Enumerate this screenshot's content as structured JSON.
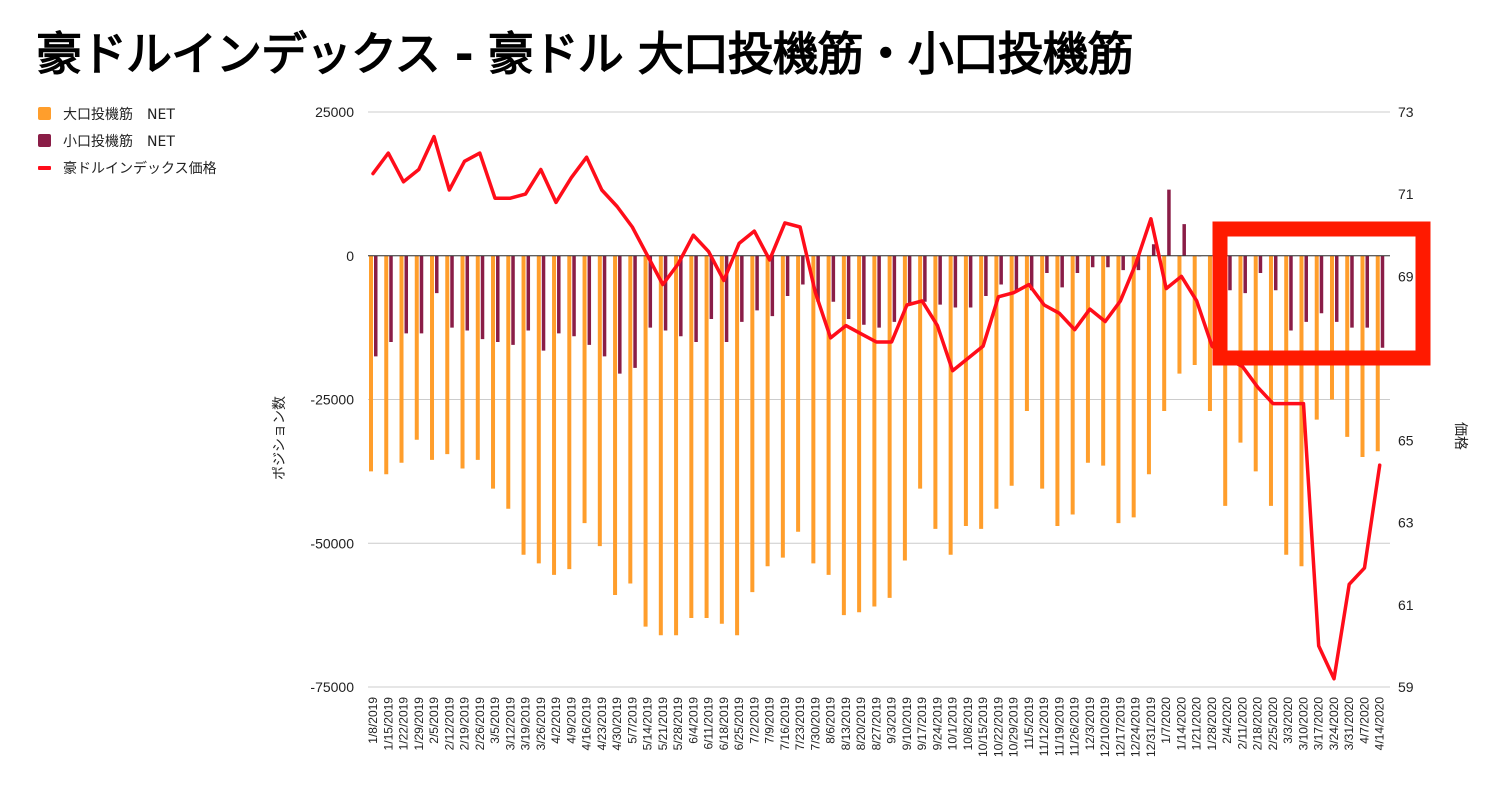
{
  "title": "豪ドルインデックス - 豪ドル 大口投機筋・小口投機筋",
  "colors": {
    "large": "#FF9E2C",
    "small": "#8A1D47",
    "price": "#FF0D1A",
    "highlight": "#FF1A00",
    "grid": "#CCCCCC"
  },
  "chart_data": {
    "type": "bar",
    "title": "豪ドルインデックス - 豪ドル 大口投機筋・小口投機筋",
    "ylabel": "ポジション数",
    "y2label": "価格",
    "ylim": [
      -75000,
      25000
    ],
    "y2lim": [
      59,
      73
    ],
    "yticks": [
      "25000",
      "0",
      "-25000",
      "-50000",
      "-75000"
    ],
    "y2ticks": [
      "73",
      "71",
      "69",
      "65",
      "63",
      "61",
      "59"
    ],
    "legend": [
      "大口投機筋　NET",
      "小口投機筋　NET",
      "豪ドルインデックス価格"
    ],
    "categories": [
      "1/8/2019",
      "1/15/2019",
      "1/22/2019",
      "1/29/2019",
      "2/5/2019",
      "2/12/2019",
      "2/19/2019",
      "2/26/2019",
      "3/5/2019",
      "3/12/2019",
      "3/19/2019",
      "3/26/2019",
      "4/2/2019",
      "4/9/2019",
      "4/16/2019",
      "4/23/2019",
      "4/30/2019",
      "5/7/2019",
      "5/14/2019",
      "5/21/2019",
      "5/28/2019",
      "6/4/2019",
      "6/11/2019",
      "6/18/2019",
      "6/25/2019",
      "7/2/2019",
      "7/9/2019",
      "7/16/2019",
      "7/23/2019",
      "7/30/2019",
      "8/6/2019",
      "8/13/2019",
      "8/20/2019",
      "8/27/2019",
      "9/3/2019",
      "9/10/2019",
      "9/17/2019",
      "9/24/2019",
      "10/1/2019",
      "10/8/2019",
      "10/15/2019",
      "10/22/2019",
      "10/29/2019",
      "11/5/2019",
      "11/12/2019",
      "11/19/2019",
      "11/26/2019",
      "12/3/2019",
      "12/10/2019",
      "12/17/2019",
      "12/24/2019",
      "12/31/2019",
      "1/7/2020",
      "1/14/2020",
      "1/21/2020",
      "1/28/2020",
      "2/4/2020",
      "2/11/2020",
      "2/18/2020",
      "2/25/2020",
      "3/3/2020",
      "3/10/2020",
      "3/17/2020",
      "3/24/2020",
      "3/31/2020",
      "4/7/2020",
      "4/14/2020"
    ],
    "series": [
      {
        "name": "大口投機筋　NET",
        "axis": "left",
        "kind": "bar",
        "values": [
          -37500,
          -38000,
          -36000,
          -32000,
          -35500,
          -34500,
          -37000,
          -35500,
          -40500,
          -44000,
          -52000,
          -53500,
          -55500,
          -54500,
          -46500,
          -50500,
          -59000,
          -57000,
          -64500,
          -66000,
          -66000,
          -63000,
          -63000,
          -64000,
          -66000,
          -58500,
          -54000,
          -52500,
          -48000,
          -53500,
          -55500,
          -62500,
          -62000,
          -61000,
          -59500,
          -53000,
          -40500,
          -47500,
          -52000,
          -47000,
          -47500,
          -44000,
          -40000,
          -27000,
          -40500,
          -47000,
          -45000,
          -36000,
          -36500,
          -46500,
          -45500,
          -38000,
          -27000,
          -20500,
          -19000,
          -27000,
          -43500,
          -32500,
          -37500,
          -43500,
          -52000,
          -54000,
          -28500,
          -25000,
          -31500,
          -35000,
          -34000
        ]
      },
      {
        "name": "小口投機筋　NET",
        "axis": "left",
        "kind": "bar",
        "values": [
          -17500,
          -15000,
          -13500,
          -13500,
          -6500,
          -12500,
          -13000,
          -14500,
          -15000,
          -15500,
          -13000,
          -16500,
          -13500,
          -14000,
          -15500,
          -17500,
          -20500,
          -19500,
          -12500,
          -13000,
          -14000,
          -15000,
          -11000,
          -15000,
          -11500,
          -9500,
          -10500,
          -7000,
          -5000,
          -8000,
          -8000,
          -11000,
          -12000,
          -12500,
          -11500,
          -8500,
          -8000,
          -8500,
          -9000,
          -9000,
          -7000,
          -5000,
          -6000,
          -6000,
          -3000,
          -5500,
          -3000,
          -2000,
          -2000,
          -2500,
          -2500,
          2000,
          11500,
          5500,
          0,
          0,
          -6000,
          -6500,
          -3000,
          -6000,
          -13000,
          -11500,
          -10000,
          -11500,
          -12500,
          -12500,
          -16000
        ]
      },
      {
        "name": "豪ドルインデックス価格",
        "axis": "right",
        "kind": "line",
        "values": [
          71.5,
          72.0,
          71.3,
          71.6,
          72.4,
          71.1,
          71.8,
          72.0,
          70.9,
          70.9,
          71.0,
          71.6,
          70.8,
          71.4,
          71.9,
          71.1,
          70.7,
          70.2,
          69.5,
          68.8,
          69.3,
          70.0,
          69.6,
          68.9,
          69.8,
          70.1,
          69.4,
          70.3,
          70.2,
          68.6,
          67.5,
          67.8,
          67.6,
          67.4,
          67.4,
          68.3,
          68.4,
          67.8,
          66.7,
          67.0,
          67.3,
          68.5,
          68.6,
          68.8,
          68.3,
          68.1,
          67.7,
          68.2,
          67.9,
          68.4,
          69.3,
          70.4,
          68.7,
          69.0,
          68.4,
          67.3,
          67.0,
          66.8,
          66.3,
          65.9,
          65.9,
          65.9,
          60.0,
          59.2,
          61.5,
          61.9,
          64.4
        ]
      }
    ]
  }
}
